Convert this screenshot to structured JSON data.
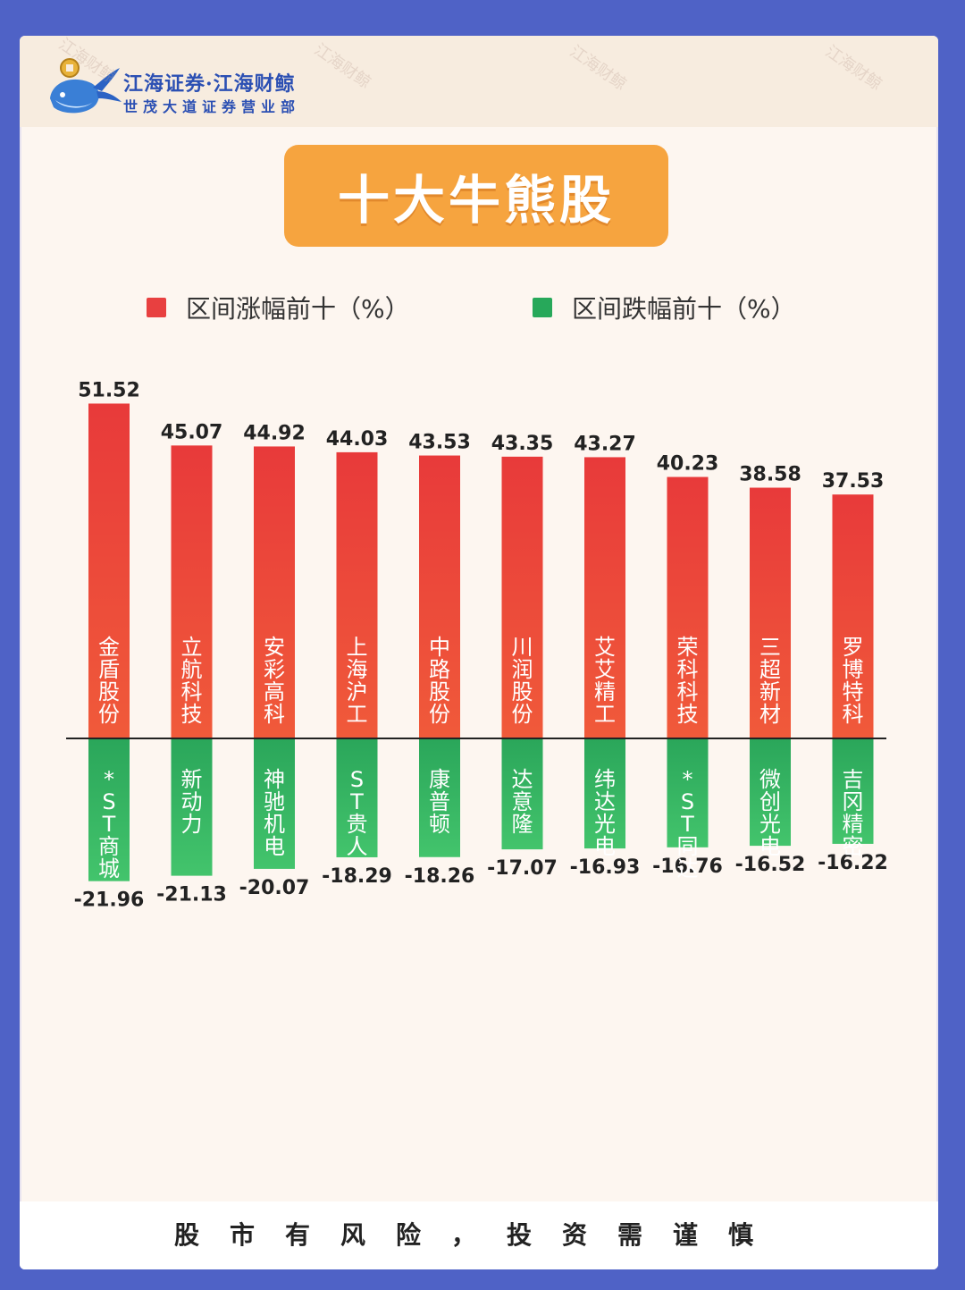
{
  "header": {
    "brand_line1": "江海证券·江海财鲸",
    "brand_line2": "世茂大道证券营业部",
    "watermark": "江海财鲸"
  },
  "title": "十大牛熊股",
  "footer": "股市有风险，投资需谨慎",
  "colors": {
    "background": "#4f62c6",
    "title_box": "#f6a43f",
    "up_top": "#e83a3a",
    "up_bottom": "#f05a3a",
    "down_top": "#2aa65a",
    "down_bottom": "#43c46c",
    "legend_up": "#e84040",
    "legend_down": "#27a85a"
  },
  "chart_data": {
    "type": "bar",
    "title": "十大牛熊股",
    "legend_placement": "top",
    "grid": false,
    "ylim": [
      -22,
      52
    ],
    "series": [
      {
        "name": "区间涨幅前十（%）",
        "categories": [
          "金盾股份",
          "立航科技",
          "安彩高科",
          "上海沪工",
          "中路股份",
          "川润股份",
          "艾艾精工",
          "荣科科技",
          "三超新材",
          "罗博特科"
        ],
        "values": [
          51.52,
          45.07,
          44.92,
          44.03,
          43.53,
          43.35,
          43.27,
          40.23,
          38.58,
          37.53
        ],
        "value_labels": [
          "51.52",
          "45.07",
          "44.92",
          "44.03",
          "43.53",
          "43.35",
          "43.27",
          "40.23",
          "38.58",
          "37.53"
        ]
      },
      {
        "name": "区间跌幅前十（%）",
        "categories": [
          "*ST商城",
          "新动力",
          "神驰机电",
          "ST贵人",
          "康普顿",
          "达意隆",
          "纬达光电",
          "*ST同达",
          "微创光电",
          "吉冈精密"
        ],
        "values": [
          -21.96,
          -21.13,
          -20.07,
          -18.29,
          -18.26,
          -17.07,
          -16.93,
          -16.76,
          -16.52,
          -16.22
        ],
        "value_labels": [
          "-21.96",
          "-21.13",
          "-20.07",
          "-18.29",
          "-18.26",
          "-17.07",
          "-16.93",
          "-16.76",
          "-16.52",
          "-16.22"
        ]
      }
    ]
  }
}
